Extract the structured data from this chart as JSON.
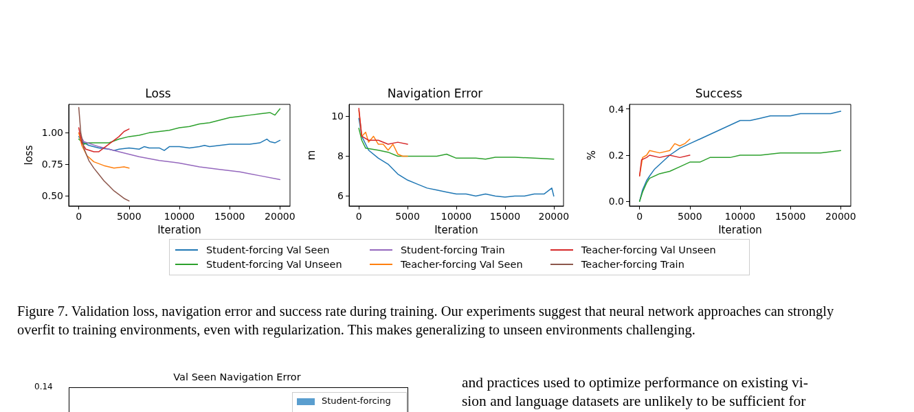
{
  "chart_data": [
    {
      "type": "line",
      "title": "Loss",
      "xlabel": "Iteration",
      "ylabel": "loss",
      "xlim": [
        -1000,
        21000
      ],
      "xticks": [
        0,
        5000,
        10000,
        15000,
        20000
      ],
      "ylim": [
        0.42,
        1.225
      ],
      "yticks": [
        {
          "value": 0.5,
          "label": "0.50"
        },
        {
          "value": 0.75,
          "label": "0.75"
        },
        {
          "value": 1.0,
          "label": "1.00"
        }
      ],
      "grid": false,
      "marker": "none",
      "line_style": "solid",
      "legend": "bottom",
      "annotations": [
        "Figure 7. Validation loss, navigation error and success rate during training.  Our experiments suggest that neural network approaches can strongly overfit to training environments, even with regularization. This makes generalizing to unseen environments challenging."
      ],
      "series": [
        {
          "name": "Student-forcing Val Seen",
          "color": "#1f77b4",
          "x": [
            0,
            300,
            1000,
            2000,
            3000,
            3500,
            4000,
            5000,
            6000,
            6500,
            7000,
            8000,
            8500,
            9000,
            10000,
            11000,
            12000,
            12500,
            13000,
            14000,
            15000,
            16000,
            17000,
            18000,
            18700,
            19000,
            19500,
            20000
          ],
          "values": [
            0.97,
            0.93,
            0.9,
            0.88,
            0.87,
            0.86,
            0.87,
            0.88,
            0.87,
            0.89,
            0.88,
            0.88,
            0.86,
            0.89,
            0.89,
            0.88,
            0.89,
            0.9,
            0.89,
            0.9,
            0.91,
            0.91,
            0.91,
            0.92,
            0.95,
            0.93,
            0.92,
            0.94
          ]
        },
        {
          "name": "Student-forcing Val Unseen",
          "color": "#2ca02c",
          "x": [
            0,
            500,
            1000,
            2000,
            3000,
            4000,
            5000,
            6000,
            7000,
            8000,
            9000,
            10000,
            11000,
            12000,
            13000,
            14000,
            15000,
            16000,
            17000,
            18000,
            19000,
            19500,
            20000
          ],
          "values": [
            0.95,
            0.91,
            0.92,
            0.92,
            0.92,
            0.95,
            0.97,
            0.98,
            1.0,
            1.01,
            1.02,
            1.04,
            1.05,
            1.07,
            1.08,
            1.1,
            1.12,
            1.13,
            1.14,
            1.15,
            1.16,
            1.14,
            1.19
          ]
        },
        {
          "name": "Student-forcing Train",
          "color": "#9467bd",
          "x": [
            0,
            500,
            2000,
            4000,
            6000,
            8000,
            10000,
            12000,
            14000,
            16000,
            18000,
            20000
          ],
          "values": [
            1.0,
            0.93,
            0.89,
            0.85,
            0.81,
            0.78,
            0.76,
            0.73,
            0.71,
            0.69,
            0.66,
            0.63
          ]
        },
        {
          "name": "Teacher-forcing Val Seen",
          "color": "#ff7f0e",
          "x": [
            0,
            300,
            800,
            1500,
            2500,
            3500,
            4500,
            5000
          ],
          "values": [
            1.0,
            0.9,
            0.82,
            0.77,
            0.74,
            0.72,
            0.73,
            0.72
          ]
        },
        {
          "name": "Teacher-forcing Val Unseen",
          "color": "#d62728",
          "x": [
            0,
            300,
            700,
            1500,
            2000,
            2500,
            3000,
            3500,
            4000,
            4500,
            5000
          ],
          "values": [
            1.04,
            0.92,
            0.87,
            0.85,
            0.85,
            0.88,
            0.91,
            0.94,
            0.97,
            1.01,
            1.03
          ]
        },
        {
          "name": "Teacher-forcing Train",
          "color": "#8c564b",
          "x": [
            0,
            200,
            500,
            1000,
            1500,
            2000,
            2500,
            3000,
            3500,
            4000,
            4500,
            5000
          ],
          "values": [
            1.2,
            1.0,
            0.88,
            0.78,
            0.72,
            0.67,
            0.62,
            0.58,
            0.54,
            0.51,
            0.48,
            0.46
          ]
        }
      ]
    },
    {
      "type": "line",
      "title": "Navigation Error",
      "xlabel": "Iteration",
      "ylabel": "m",
      "xlim": [
        -1000,
        21000
      ],
      "xticks": [
        0,
        5000,
        10000,
        15000,
        20000
      ],
      "ylim": [
        5.5,
        10.6
      ],
      "yticks": [
        6,
        8,
        10
      ],
      "grid": false,
      "marker": "none",
      "line_style": "solid",
      "series": [
        {
          "name": "Student-forcing Val Seen",
          "color": "#1f77b4",
          "x": [
            0,
            300,
            700,
            1000,
            2000,
            3000,
            4000,
            5000,
            6000,
            7000,
            8000,
            9000,
            10000,
            11000,
            12000,
            13000,
            14000,
            15000,
            16000,
            17000,
            18000,
            19000,
            19800,
            20000
          ],
          "values": [
            9.9,
            9.0,
            8.6,
            8.3,
            7.9,
            7.6,
            7.1,
            6.8,
            6.6,
            6.4,
            6.3,
            6.2,
            6.1,
            6.1,
            6.0,
            6.1,
            6.0,
            5.95,
            6.0,
            6.0,
            6.1,
            6.1,
            6.4,
            6.0
          ]
        },
        {
          "name": "Student-forcing Val Unseen",
          "color": "#2ca02c",
          "x": [
            0,
            300,
            700,
            2000,
            3000,
            4000,
            5000,
            6000,
            8000,
            9000,
            10000,
            12000,
            13000,
            14000,
            16000,
            18000,
            20000
          ],
          "values": [
            9.4,
            8.8,
            8.4,
            8.3,
            8.2,
            8.0,
            8.0,
            8.0,
            8.0,
            8.1,
            7.9,
            7.9,
            7.85,
            7.95,
            7.95,
            7.9,
            7.85
          ]
        },
        {
          "name": "Teacher-forcing Val Seen",
          "color": "#ff7f0e",
          "x": [
            0,
            300,
            700,
            1000,
            1500,
            2000,
            2500,
            3000,
            3500,
            4000,
            4500,
            5000
          ],
          "values": [
            10.3,
            9.0,
            9.2,
            8.7,
            9.0,
            8.6,
            8.6,
            8.3,
            8.6,
            8.1,
            8.0,
            8.0
          ]
        },
        {
          "name": "Teacher-forcing Val Unseen",
          "color": "#d62728",
          "x": [
            0,
            300,
            1000,
            2000,
            3000,
            4000,
            5000
          ],
          "values": [
            10.4,
            9.0,
            8.8,
            8.8,
            8.6,
            8.7,
            8.6
          ]
        }
      ]
    },
    {
      "type": "line",
      "title": "Success",
      "xlabel": "Iteration",
      "ylabel": "%",
      "xlim": [
        -1000,
        21000
      ],
      "xticks": [
        0,
        5000,
        10000,
        15000,
        20000
      ],
      "ylim": [
        -0.02,
        0.42
      ],
      "yticks": [
        {
          "value": 0,
          "label": "0.0"
        },
        {
          "value": 0.2,
          "label": "0.2"
        },
        {
          "value": 0.4,
          "label": "0.4"
        }
      ],
      "grid": false,
      "marker": "none",
      "line_style": "solid",
      "series": [
        {
          "name": "Student-forcing Val Seen",
          "color": "#1f77b4",
          "x": [
            0,
            300,
            700,
            1000,
            1500,
            2000,
            2500,
            3000,
            4000,
            5000,
            6000,
            7000,
            8000,
            9000,
            10000,
            11000,
            12000,
            13000,
            14000,
            15000,
            16000,
            17000,
            18000,
            19000,
            20000
          ],
          "values": [
            0.0,
            0.05,
            0.09,
            0.11,
            0.14,
            0.16,
            0.18,
            0.2,
            0.23,
            0.25,
            0.27,
            0.29,
            0.31,
            0.33,
            0.35,
            0.35,
            0.36,
            0.37,
            0.37,
            0.37,
            0.38,
            0.38,
            0.38,
            0.38,
            0.39
          ]
        },
        {
          "name": "Student-forcing Val Unseen",
          "color": "#2ca02c",
          "x": [
            0,
            300,
            700,
            1000,
            2000,
            3000,
            4000,
            5000,
            6000,
            7000,
            8000,
            9000,
            10000,
            12000,
            14000,
            16000,
            18000,
            20000
          ],
          "values": [
            0.0,
            0.04,
            0.08,
            0.1,
            0.12,
            0.13,
            0.15,
            0.17,
            0.17,
            0.19,
            0.19,
            0.19,
            0.2,
            0.2,
            0.21,
            0.21,
            0.21,
            0.22
          ]
        },
        {
          "name": "Teacher-forcing Val Seen",
          "color": "#ff7f0e",
          "x": [
            0,
            300,
            700,
            1000,
            2000,
            3000,
            3500,
            4000,
            4500,
            5000
          ],
          "values": [
            0.11,
            0.19,
            0.2,
            0.22,
            0.21,
            0.22,
            0.25,
            0.24,
            0.25,
            0.27
          ]
        },
        {
          "name": "Teacher-forcing Val Unseen",
          "color": "#d62728",
          "x": [
            0,
            200,
            700,
            1000,
            2000,
            3000,
            4000,
            5000
          ],
          "values": [
            0.11,
            0.18,
            0.19,
            0.2,
            0.19,
            0.2,
            0.19,
            0.2
          ]
        }
      ]
    },
    {
      "type": "other",
      "title": "Val Seen Navigation Error",
      "annotations": [
        "0.14",
        "Student-forcing"
      ]
    },
    {
      "type": "other",
      "annotations": [
        "and practices used to optimize performance on existing vi-",
        "sion and language datasets are unlikely to be sufficient for"
      ]
    }
  ]
}
